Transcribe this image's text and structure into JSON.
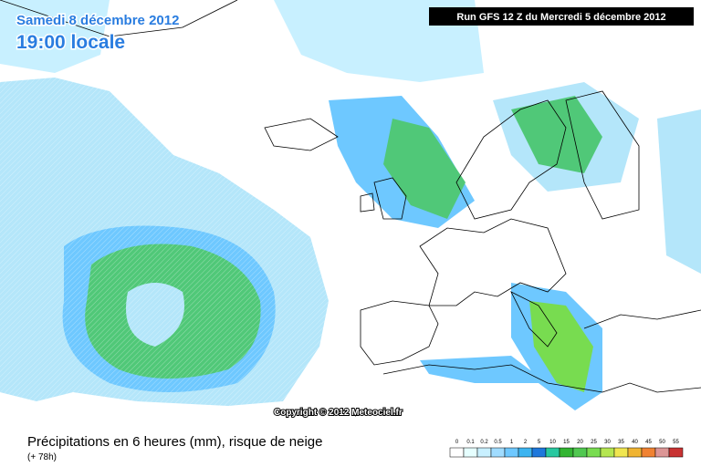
{
  "header": {
    "date": "Samedi 8 décembre 2012",
    "time": "19:00 locale",
    "run": "Run GFS 12 Z du Mercredi 5 décembre 2012"
  },
  "copyright": "Copyright © 2012 Meteociel.fr",
  "footer": {
    "title": "Précipitations en 6 heures (mm), risque de neige",
    "lead": "(+ 78h)"
  },
  "legend": {
    "labels": [
      "0",
      "0.1",
      "0.2",
      "0.5",
      "1",
      "2",
      "5",
      "10",
      "15",
      "20",
      "25",
      "30",
      "35",
      "40",
      "45",
      "50",
      "55"
    ],
    "colors": [
      "#ffffff",
      "#e6ffff",
      "#c8f0ff",
      "#a0dcff",
      "#6ec8ff",
      "#3cb4f0",
      "#1e78dc",
      "#28c8a0",
      "#32b432",
      "#50c850",
      "#78dc50",
      "#b4e650",
      "#f0e650",
      "#f0b432",
      "#f08232",
      "#dc9696",
      "#c83232"
    ]
  }
}
